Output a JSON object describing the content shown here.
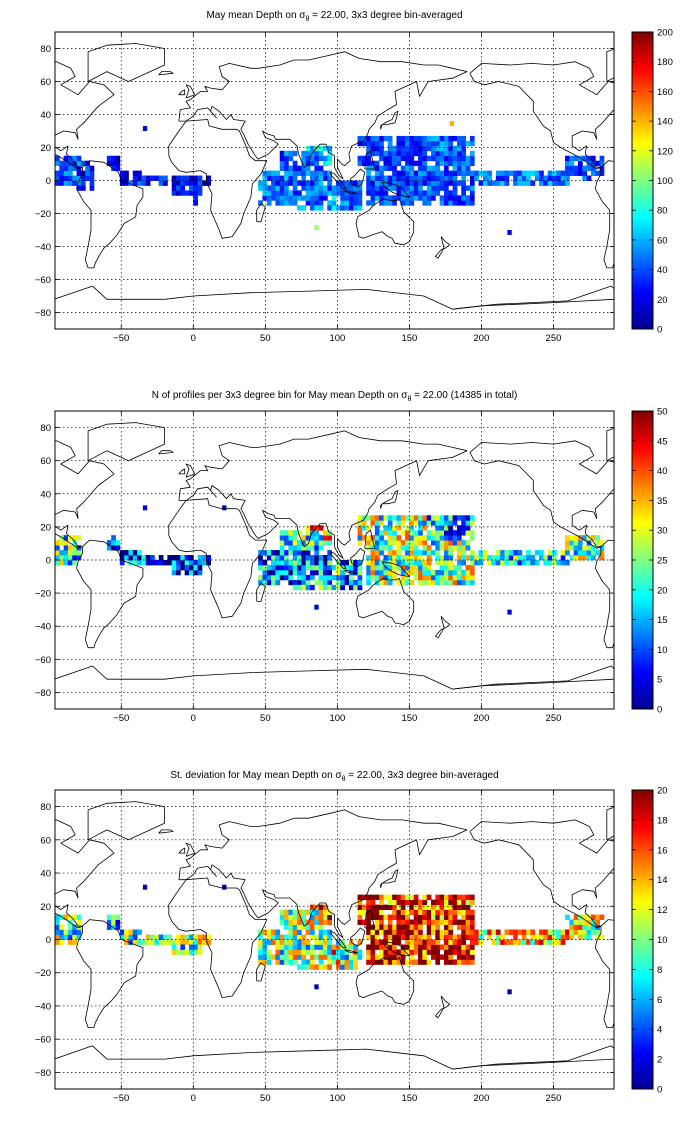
{
  "chart_data": [
    {
      "type": "heatmap",
      "title": "May mean Depth on σθ = 22.00, 3x3 degree bin-averaged",
      "title_parts": {
        "before": "May mean Depth on ",
        "sym": "σ",
        "sub": "θ",
        "after": " = 22.00, 3x3 degree bin-averaged"
      },
      "xlabel": "",
      "ylabel": "",
      "xlim": [
        -96,
        292
      ],
      "ylim": [
        -90,
        90
      ],
      "xticks": [
        -50,
        0,
        50,
        100,
        150,
        200,
        250
      ],
      "yticks": [
        80,
        60,
        40,
        20,
        0,
        -20,
        -40,
        -60,
        -80
      ],
      "grid": true,
      "colorbar": {
        "min": 0,
        "max": 200,
        "ticks": [
          0,
          20,
          40,
          60,
          80,
          100,
          120,
          140,
          160,
          180,
          200
        ]
      },
      "regions": [
        {
          "x": [
            -96,
            -80
          ],
          "y": [
            -3,
            15
          ],
          "value": 40
        },
        {
          "x": [
            -80,
            -70
          ],
          "y": [
            -5,
            10
          ],
          "value": 30
        },
        {
          "x": [
            -60,
            -53
          ],
          "y": [
            6,
            15
          ],
          "value": 20
        },
        {
          "x": [
            -50,
            -38
          ],
          "y": [
            -3,
            6
          ],
          "value": 30
        },
        {
          "x": [
            -38,
            10
          ],
          "y": [
            -3,
            3
          ],
          "value": 25
        },
        {
          "x": [
            -15,
            5
          ],
          "y": [
            -9,
            3
          ],
          "value": 28
        },
        {
          "x": 0,
          "y": [
            -15,
            -5
          ],
          "value": 22
        },
        {
          "x": [
            45,
            95
          ],
          "y": [
            -15,
            5
          ],
          "value": 45
        },
        {
          "x": [
            60,
            88
          ],
          "y": [
            5,
            18
          ],
          "value": 40
        },
        {
          "x": [
            80,
            95
          ],
          "y": [
            10,
            20
          ],
          "value": 70
        },
        {
          "x": [
            70,
            100
          ],
          "y": [
            -18,
            -5
          ],
          "value": 60
        },
        {
          "x": [
            100,
            115
          ],
          "y": [
            -18,
            0
          ],
          "value": 45
        },
        {
          "x": [
            115,
            160
          ],
          "y": [
            10,
            25
          ],
          "value": 35
        },
        {
          "x": [
            120,
            195
          ],
          "y": [
            -15,
            10
          ],
          "value": 40
        },
        {
          "x": [
            160,
            195
          ],
          "y": [
            10,
            25
          ],
          "value": 45
        },
        {
          "x": [
            190,
            260
          ],
          "y": [
            -3,
            6
          ],
          "value": 48
        },
        {
          "x": [
            260,
            285
          ],
          "y": [
            0,
            15
          ],
          "value": 38
        }
      ],
      "points": [
        {
          "x": 178,
          "y": 33,
          "value": 140
        },
        {
          "x": -35,
          "y": 30,
          "value": 20
        },
        {
          "x": 84,
          "y": -30,
          "value": 105
        },
        {
          "x": 218,
          "y": -33,
          "value": 20
        }
      ]
    },
    {
      "type": "heatmap",
      "title": "N of profiles per 3x3 degree bin for May mean Depth on σθ = 22.00 (14385 in total)",
      "title_parts": {
        "before": "N of profiles per 3x3 degree bin for May mean Depth on ",
        "sym": "σ",
        "sub": "θ",
        "after": " = 22.00 (14385 in total)"
      },
      "xlabel": "",
      "ylabel": "",
      "xlim": [
        -96,
        292
      ],
      "ylim": [
        -90,
        90
      ],
      "xticks": [
        -50,
        0,
        50,
        100,
        150,
        200,
        250
      ],
      "yticks": [
        80,
        60,
        40,
        20,
        0,
        -20,
        -40,
        -60,
        -80
      ],
      "grid": true,
      "colorbar": {
        "min": 0,
        "max": 50,
        "ticks": [
          0,
          5,
          10,
          15,
          20,
          25,
          30,
          35,
          40,
          45,
          50
        ]
      },
      "regions": [
        {
          "x": [
            -96,
            -80
          ],
          "y": [
            -3,
            15
          ],
          "value": 20
        },
        {
          "x": [
            -60,
            -53
          ],
          "y": [
            6,
            15
          ],
          "value": 10
        },
        {
          "x": [
            -50,
            -38
          ],
          "y": [
            -3,
            6
          ],
          "value": 8
        },
        {
          "x": [
            -38,
            10
          ],
          "y": [
            -3,
            3
          ],
          "value": 7
        },
        {
          "x": [
            -15,
            5
          ],
          "y": [
            -9,
            3
          ],
          "value": 6
        },
        {
          "x": [
            45,
            95
          ],
          "y": [
            -15,
            5
          ],
          "value": 12
        },
        {
          "x": [
            60,
            88
          ],
          "y": [
            5,
            18
          ],
          "value": 20
        },
        {
          "x": [
            80,
            95
          ],
          "y": [
            10,
            20
          ],
          "value": 35
        },
        {
          "x": [
            70,
            100
          ],
          "y": [
            -18,
            -5
          ],
          "value": 18
        },
        {
          "x": [
            100,
            115
          ],
          "y": [
            -18,
            0
          ],
          "value": 15
        },
        {
          "x": [
            115,
            160
          ],
          "y": [
            10,
            25
          ],
          "value": 25
        },
        {
          "x": [
            120,
            195
          ],
          "y": [
            -15,
            10
          ],
          "value": 25
        },
        {
          "x": [
            160,
            195
          ],
          "y": [
            10,
            25
          ],
          "value": 15
        },
        {
          "x": [
            190,
            260
          ],
          "y": [
            -3,
            6
          ],
          "value": 18
        },
        {
          "x": [
            260,
            285
          ],
          "y": [
            0,
            15
          ],
          "value": 25
        }
      ],
      "points": [
        {
          "x": -35,
          "y": 30,
          "value": 5
        },
        {
          "x": 84,
          "y": -30,
          "value": 5
        },
        {
          "x": 218,
          "y": -33,
          "value": 5
        },
        {
          "x": 20,
          "y": 30,
          "value": 5
        }
      ]
    },
    {
      "type": "heatmap",
      "title": "St. deviation for May mean Depth on σθ = 22.00, 3x3 degree bin-averaged",
      "title_parts": {
        "before": "St. deviation for May mean Depth on ",
        "sym": "σ",
        "sub": "θ",
        "after": " = 22.00, 3x3 degree bin-averaged"
      },
      "xlabel": "",
      "ylabel": "",
      "xlim": [
        -96,
        292
      ],
      "ylim": [
        -90,
        90
      ],
      "xticks": [
        -50,
        0,
        50,
        100,
        150,
        200,
        250
      ],
      "yticks": [
        80,
        60,
        40,
        20,
        0,
        -20,
        -40,
        -60,
        -80
      ],
      "grid": true,
      "colorbar": {
        "min": 0,
        "max": 20,
        "ticks": [
          0,
          2,
          4,
          6,
          8,
          10,
          12,
          14,
          16,
          18,
          20
        ]
      },
      "regions": [
        {
          "x": [
            -96,
            -80
          ],
          "y": [
            -3,
            15
          ],
          "value": 9
        },
        {
          "x": [
            -60,
            -53
          ],
          "y": [
            6,
            15
          ],
          "value": 8
        },
        {
          "x": [
            -50,
            -38
          ],
          "y": [
            -3,
            6
          ],
          "value": 9
        },
        {
          "x": [
            -38,
            10
          ],
          "y": [
            -3,
            3
          ],
          "value": 10
        },
        {
          "x": [
            -15,
            5
          ],
          "y": [
            -9,
            3
          ],
          "value": 8
        },
        {
          "x": [
            45,
            95
          ],
          "y": [
            -15,
            5
          ],
          "value": 10
        },
        {
          "x": [
            60,
            88
          ],
          "y": [
            5,
            18
          ],
          "value": 11
        },
        {
          "x": [
            80,
            95
          ],
          "y": [
            10,
            20
          ],
          "value": 16
        },
        {
          "x": [
            70,
            100
          ],
          "y": [
            -18,
            -5
          ],
          "value": 13
        },
        {
          "x": [
            100,
            115
          ],
          "y": [
            -18,
            0
          ],
          "value": 10
        },
        {
          "x": [
            115,
            160
          ],
          "y": [
            10,
            25
          ],
          "value": 17
        },
        {
          "x": [
            120,
            195
          ],
          "y": [
            -15,
            10
          ],
          "value": 18
        },
        {
          "x": [
            160,
            195
          ],
          "y": [
            10,
            25
          ],
          "value": 16
        },
        {
          "x": [
            190,
            260
          ],
          "y": [
            -3,
            6
          ],
          "value": 13
        },
        {
          "x": [
            260,
            285
          ],
          "y": [
            0,
            15
          ],
          "value": 11
        }
      ],
      "points": [
        {
          "x": -35,
          "y": 30,
          "value": 1
        },
        {
          "x": 84,
          "y": -30,
          "value": 1
        },
        {
          "x": 218,
          "y": -33,
          "value": 1
        },
        {
          "x": 20,
          "y": 30,
          "value": 1
        }
      ]
    }
  ]
}
